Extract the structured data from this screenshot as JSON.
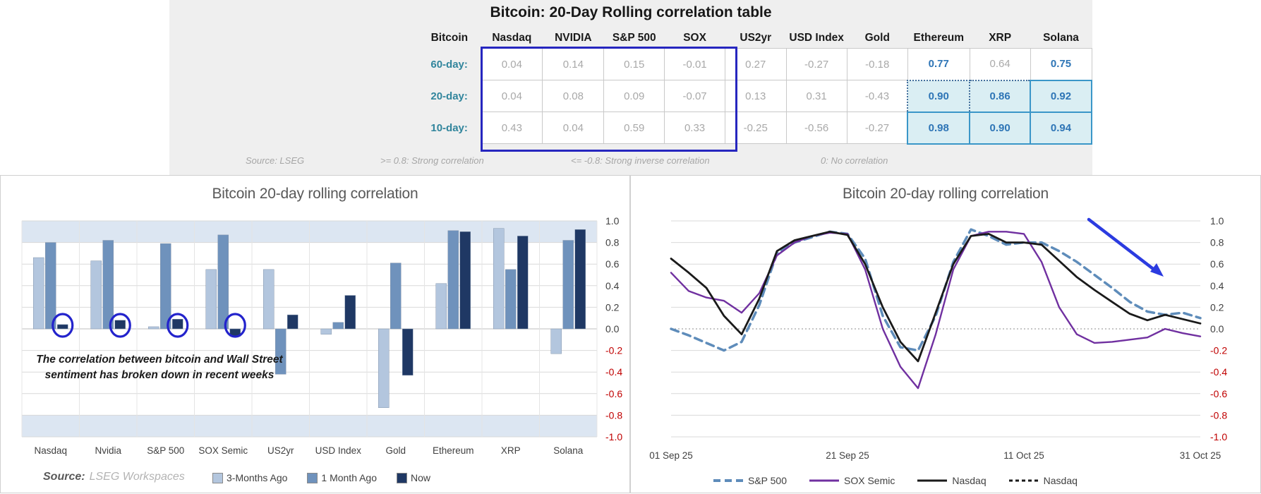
{
  "correlation_table": {
    "title": "Bitcoin: 20-Day Rolling correlation table",
    "corner_label": "Bitcoin",
    "columns": [
      "Nasdaq",
      "NVIDIA",
      "S&P 500",
      "SOX",
      "US2yr",
      "USD Index",
      "Gold",
      "Ethereum",
      "XRP",
      "Solana"
    ],
    "rows": [
      {
        "label": "60-day:",
        "values": [
          "0.04",
          "0.14",
          "0.15",
          "-0.01",
          "0.27",
          "-0.27",
          "-0.18",
          "0.77",
          "0.64",
          "0.75"
        ],
        "styles": [
          "g",
          "g",
          "g",
          "g",
          "g",
          "g",
          "g",
          "b",
          "g",
          "b"
        ]
      },
      {
        "label": "20-day:",
        "values": [
          "0.04",
          "0.08",
          "0.09",
          "-0.07",
          "0.13",
          "0.31",
          "-0.43",
          "0.90",
          "0.86",
          "0.92"
        ],
        "styles": [
          "g",
          "g",
          "g",
          "g",
          "g",
          "g",
          "g",
          "hd",
          "hd",
          "hs"
        ]
      },
      {
        "label": "10-day:",
        "values": [
          "0.43",
          "0.04",
          "0.59",
          "0.33",
          "-0.25",
          "-0.56",
          "-0.27",
          "0.98",
          "0.90",
          "0.94"
        ],
        "styles": [
          "g",
          "g",
          "g",
          "g",
          "g",
          "g",
          "g",
          "hs",
          "hs",
          "hs"
        ]
      }
    ],
    "footer": {
      "source": "Source: LSEG",
      "strong": ">= 0.8: Strong correlation",
      "inverse": "<= -0.8: Strong inverse correlation",
      "none": "0: No correlation"
    },
    "colors": {
      "teal": "#31859c",
      "value_gray": "#a9a9a9",
      "value_blue": "#2e75b6",
      "highlight_bg": "#daeef3",
      "highlight_border": "#3a96c8",
      "selection_box": "#2626bf"
    }
  },
  "chart_data": [
    {
      "type": "bar",
      "title": "Bitcoin 20-day rolling correlation",
      "categories": [
        "Nasdaq",
        "Nvidia",
        "S&P 500",
        "SOX Semic",
        "US2yr",
        "USD Index",
        "Gold",
        "Ethereum",
        "XRP",
        "Solana"
      ],
      "series": [
        {
          "name": "3-Months Ago",
          "color": "#b3c6de",
          "values": [
            0.66,
            0.63,
            0.02,
            0.55,
            0.55,
            -0.05,
            -0.73,
            0.42,
            0.93,
            -0.23
          ]
        },
        {
          "name": "1 Month Ago",
          "color": "#6f92bc",
          "values": [
            0.8,
            0.82,
            0.79,
            0.87,
            -0.42,
            0.06,
            0.61,
            0.91,
            0.55,
            0.82
          ]
        },
        {
          "name": "Now",
          "color": "#1f3864",
          "values": [
            0.04,
            0.08,
            0.09,
            -0.07,
            0.13,
            0.31,
            -0.43,
            0.9,
            0.86,
            0.92
          ]
        }
      ],
      "ylim": [
        -1.0,
        1.0
      ],
      "ytick_step": 0.2,
      "bands": [
        [
          0.8,
          1.0
        ],
        [
          -1.0,
          -0.8
        ]
      ],
      "band_color": "#dce6f2",
      "circled_category_indexes": [
        0,
        1,
        2,
        3
      ],
      "circle_color": "#2323cc",
      "negative_tick_color": "#c00000",
      "annotation": "The correlation between bitcoin and Wall Street sentiment has broken down in recent weeks",
      "source_label": "Source:",
      "source_value": "LSEG Workspaces",
      "grid": true,
      "legend_position": "bottom"
    },
    {
      "type": "line",
      "title": "Bitcoin 20-day rolling correlation",
      "x_labels": [
        "01 Sep 25",
        "21 Sep 25",
        "11 Oct 25",
        "31 Oct 25"
      ],
      "ylim": [
        -1.0,
        1.0
      ],
      "ytick_step": 0.2,
      "negative_tick_color": "#c00000",
      "zero_line": "dotted",
      "grid": true,
      "legend_position": "bottom",
      "annotation_arrow": {
        "description": "blue arrow pointing down-right over falling correlations",
        "color": "#2b3be0"
      },
      "series": [
        {
          "name": "S&P 500",
          "color": "#5e8cba",
          "style": "dashed",
          "values": [
            0.0,
            -0.06,
            -0.13,
            -0.2,
            -0.12,
            0.22,
            0.7,
            0.8,
            0.85,
            0.9,
            0.88,
            0.65,
            0.12,
            -0.17,
            -0.2,
            0.12,
            0.62,
            0.92,
            0.86,
            0.78,
            0.8,
            0.8,
            0.72,
            0.62,
            0.5,
            0.38,
            0.25,
            0.16,
            0.13,
            0.15,
            0.1
          ]
        },
        {
          "name": "SOX Semic",
          "color": "#7030a0",
          "style": "solid",
          "values": [
            0.52,
            0.35,
            0.29,
            0.26,
            0.15,
            0.33,
            0.68,
            0.8,
            0.86,
            0.89,
            0.88,
            0.55,
            0.0,
            -0.35,
            -0.55,
            -0.05,
            0.55,
            0.86,
            0.9,
            0.9,
            0.88,
            0.62,
            0.2,
            -0.05,
            -0.13,
            -0.12,
            -0.1,
            -0.08,
            0.0,
            -0.04,
            -0.07
          ]
        },
        {
          "name": "Nasdaq",
          "color": "#1a1a1a",
          "style": "solid",
          "values": [
            0.65,
            0.52,
            0.38,
            0.12,
            -0.05,
            0.28,
            0.72,
            0.82,
            0.86,
            0.9,
            0.87,
            0.6,
            0.2,
            -0.12,
            -0.3,
            0.15,
            0.6,
            0.86,
            0.88,
            0.8,
            0.8,
            0.78,
            0.63,
            0.48,
            0.36,
            0.25,
            0.14,
            0.08,
            0.13,
            0.09,
            0.05
          ]
        },
        {
          "name": "Nasdaq",
          "color": "#1a1a1a",
          "style": "dashed",
          "values": [
            0.65,
            0.52,
            0.38,
            0.12,
            -0.05,
            0.28,
            0.72,
            0.82,
            0.86,
            0.9,
            0.87,
            0.6,
            0.2,
            -0.12,
            -0.3,
            0.15,
            0.6,
            0.86,
            0.88,
            0.8,
            0.8,
            0.78,
            0.63,
            0.48,
            0.36,
            0.25,
            0.14,
            0.08,
            0.13,
            0.09,
            0.05
          ]
        }
      ]
    }
  ]
}
